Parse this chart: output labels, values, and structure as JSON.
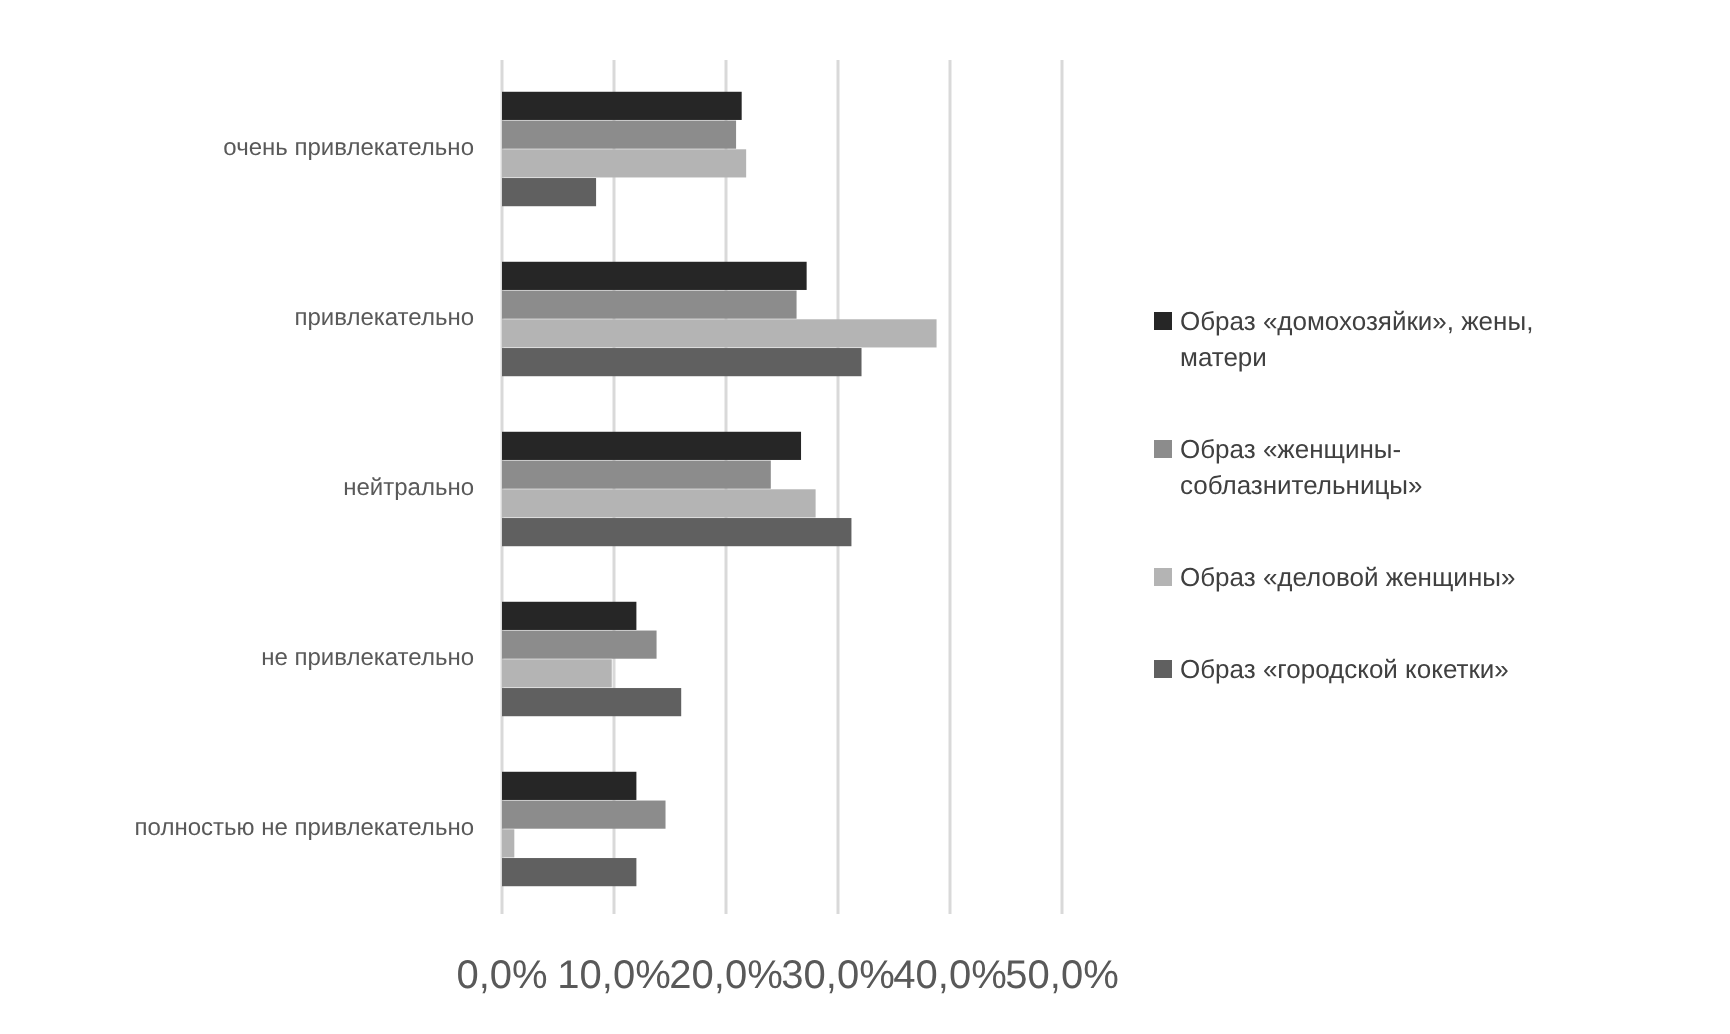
{
  "chart_data": {
    "type": "bar",
    "orientation": "horizontal",
    "categories": [
      "очень привлекательно",
      "привлекательно",
      "нейтрально",
      "не привлекательно",
      "полностью не привлекательно"
    ],
    "series": [
      {
        "name": "Образ «домохозяйки», жены, матери",
        "color": "#262626",
        "values": [
          21.4,
          27.2,
          26.7,
          12.0,
          12.0
        ]
      },
      {
        "name": "Образ «женщины-соблазнительницы»",
        "color": "#8c8c8c",
        "values": [
          20.9,
          26.3,
          24.0,
          13.8,
          14.6
        ]
      },
      {
        "name": "Образ «деловой женщины»",
        "color": "#b4b4b4",
        "values": [
          21.8,
          38.8,
          28.0,
          9.8,
          1.1
        ]
      },
      {
        "name": "Образ «городской кокетки»",
        "color": "#606060",
        "values": [
          8.4,
          32.1,
          31.2,
          16.0,
          12.0
        ]
      }
    ],
    "xlim": [
      0,
      50
    ],
    "xticks": [
      {
        "value": 0,
        "label": "0,0%"
      },
      {
        "value": 10,
        "label": "10,0%"
      },
      {
        "value": 20,
        "label": "20,0%"
      },
      {
        "value": 30,
        "label": "30,0%"
      },
      {
        "value": 40,
        "label": "40,0%"
      },
      {
        "value": 50,
        "label": "50,0%"
      }
    ],
    "grid": "x",
    "legend": "right"
  }
}
